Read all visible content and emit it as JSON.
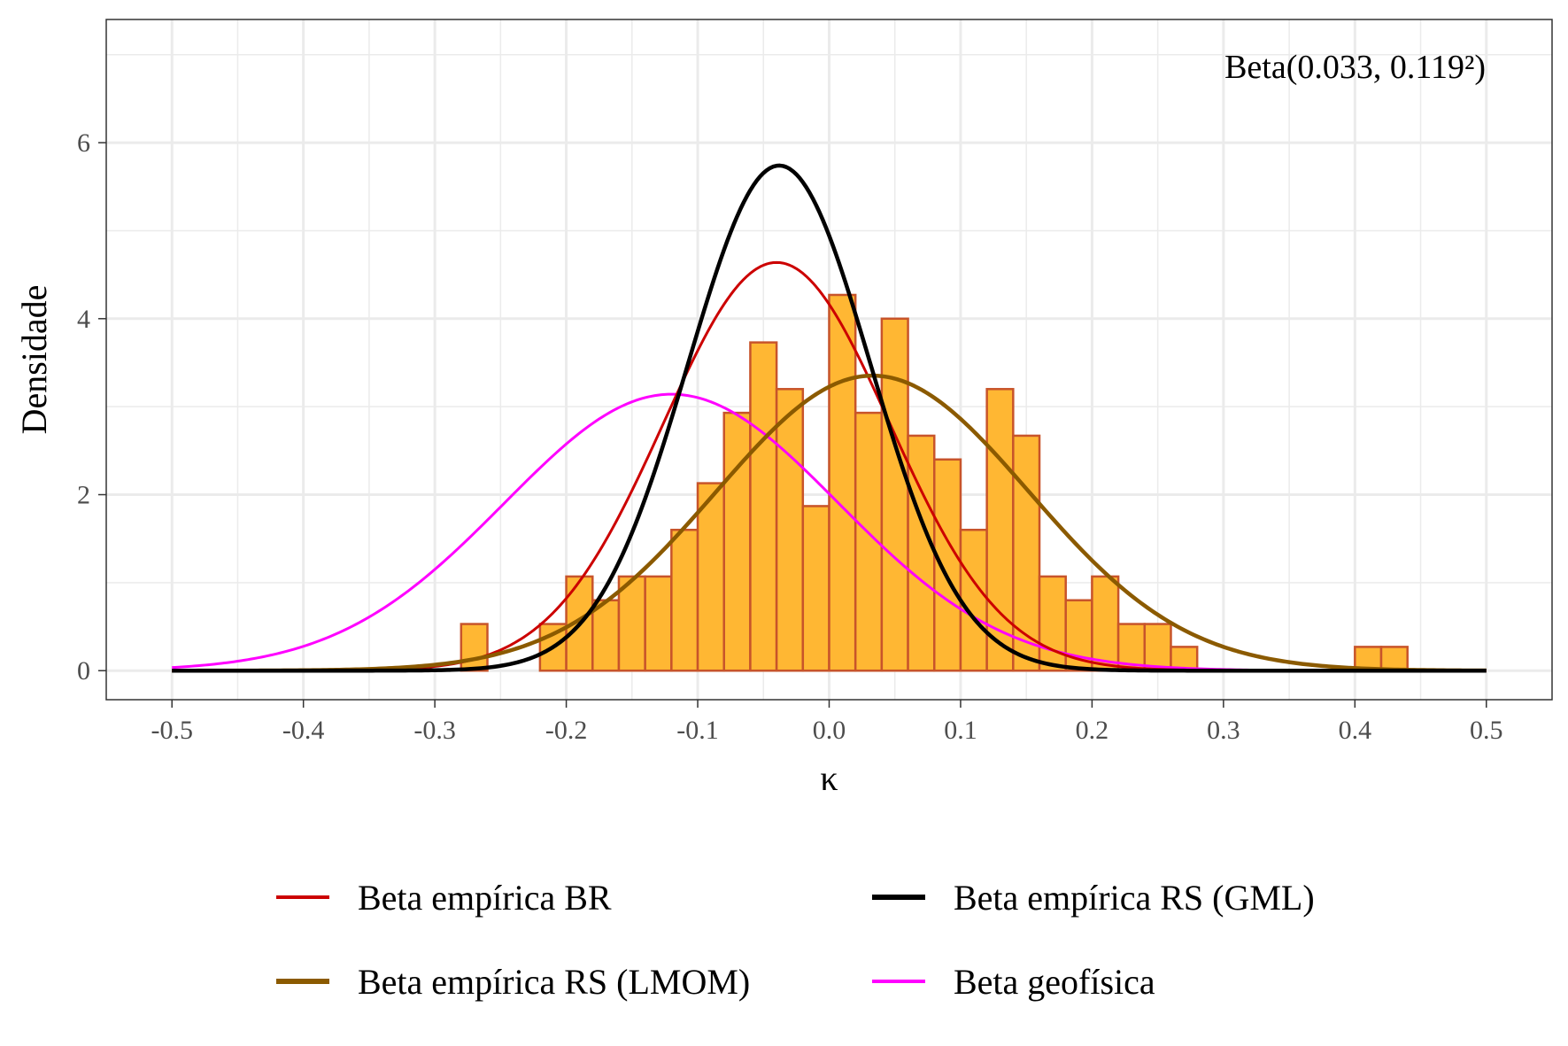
{
  "chart_data": {
    "type": "histogram",
    "xlabel": "κ",
    "ylabel": "Densidade",
    "annotation": "Beta(0.033, 0.119²)",
    "xlim": [
      -0.55,
      0.55
    ],
    "ylim": [
      -0.33,
      7.4
    ],
    "x_ticks": [
      -0.5,
      -0.4,
      -0.3,
      -0.2,
      -0.1,
      0.0,
      0.1,
      0.2,
      0.3,
      0.4,
      0.5
    ],
    "x_tick_labels": [
      "-0.5",
      "-0.4",
      "-0.3",
      "-0.2",
      "-0.1",
      "0.0",
      "0.1",
      "0.2",
      "0.3",
      "0.4",
      "0.5"
    ],
    "y_ticks": [
      0,
      2,
      4,
      6
    ],
    "y_tick_labels": [
      "0",
      "2",
      "4",
      "6"
    ],
    "grid": true,
    "legend_position": "bottom",
    "colors": {
      "bar_fill": "#FFB733",
      "bar_edge": "#C8542A",
      "grid": "#EBEBEB",
      "tick": "#333333"
    },
    "histogram": {
      "bin_width": 0.02,
      "bins": [
        {
          "x0": -0.28,
          "x1": -0.26,
          "density": 0.53
        },
        {
          "x0": -0.22,
          "x1": -0.2,
          "density": 0.53
        },
        {
          "x0": -0.2,
          "x1": -0.18,
          "density": 1.07
        },
        {
          "x0": -0.18,
          "x1": -0.16,
          "density": 0.8
        },
        {
          "x0": -0.16,
          "x1": -0.14,
          "density": 1.07
        },
        {
          "x0": -0.14,
          "x1": -0.12,
          "density": 1.07
        },
        {
          "x0": -0.12,
          "x1": -0.1,
          "density": 1.6
        },
        {
          "x0": -0.1,
          "x1": -0.08,
          "density": 2.13
        },
        {
          "x0": -0.08,
          "x1": -0.06,
          "density": 2.93
        },
        {
          "x0": -0.06,
          "x1": -0.04,
          "density": 3.73
        },
        {
          "x0": -0.04,
          "x1": -0.02,
          "density": 3.2
        },
        {
          "x0": -0.02,
          "x1": 0.0,
          "density": 1.87
        },
        {
          "x0": 0.0,
          "x1": 0.02,
          "density": 4.27
        },
        {
          "x0": 0.02,
          "x1": 0.04,
          "density": 2.93
        },
        {
          "x0": 0.04,
          "x1": 0.06,
          "density": 4.0
        },
        {
          "x0": 0.06,
          "x1": 0.08,
          "density": 2.67
        },
        {
          "x0": 0.08,
          "x1": 0.1,
          "density": 2.4
        },
        {
          "x0": 0.1,
          "x1": 0.12,
          "density": 1.6
        },
        {
          "x0": 0.12,
          "x1": 0.14,
          "density": 3.2
        },
        {
          "x0": 0.14,
          "x1": 0.16,
          "density": 2.67
        },
        {
          "x0": 0.16,
          "x1": 0.18,
          "density": 1.07
        },
        {
          "x0": 0.18,
          "x1": 0.2,
          "density": 0.8
        },
        {
          "x0": 0.2,
          "x1": 0.22,
          "density": 1.07
        },
        {
          "x0": 0.22,
          "x1": 0.24,
          "density": 0.53
        },
        {
          "x0": 0.24,
          "x1": 0.26,
          "density": 0.53
        },
        {
          "x0": 0.26,
          "x1": 0.28,
          "density": 0.27
        },
        {
          "x0": 0.4,
          "x1": 0.42,
          "density": 0.27
        },
        {
          "x0": 0.42,
          "x1": 0.44,
          "density": 0.27
        }
      ]
    },
    "series": [
      {
        "name": "Beta empírica BR",
        "color": "#CC0000",
        "curve": "normal",
        "mean": -0.04,
        "sd": 0.086,
        "x_range": [
          -0.5,
          0.5
        ],
        "stroke": "thin"
      },
      {
        "name": "Beta empírica RS (GML)",
        "color": "#000000",
        "curve": "normal",
        "mean": -0.038,
        "sd": 0.0695,
        "x_range": [
          -0.5,
          0.5
        ],
        "stroke": "thick"
      },
      {
        "name": "Beta empírica RS (LMOM)",
        "color": "#8B5A00",
        "curve": "normal",
        "mean": 0.033,
        "sd": 0.119,
        "x_range": [
          -0.5,
          0.5
        ],
        "stroke": "thick"
      },
      {
        "name": "Beta geofísica",
        "color": "#FF00FF",
        "curve": "normal",
        "mean": -0.12,
        "sd": 0.127,
        "x_range": [
          -0.5,
          0.5
        ],
        "stroke": "thin"
      }
    ]
  }
}
